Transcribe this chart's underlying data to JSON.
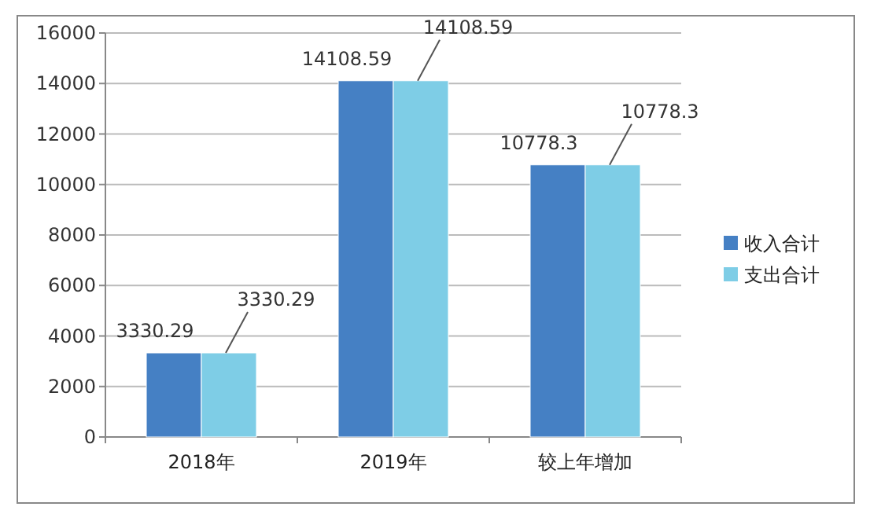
{
  "chart_data": {
    "type": "bar",
    "categories": [
      "2018年",
      "2019年",
      "较上年增加"
    ],
    "series": [
      {
        "name": "收入合计",
        "color": "#4580c4",
        "values": [
          3330.29,
          14108.59,
          10778.3
        ]
      },
      {
        "name": "支出合计",
        "color": "#7ecde6",
        "values": [
          3330.29,
          14108.59,
          10778.3
        ]
      }
    ],
    "ylim": [
      0,
      16000
    ],
    "yticks": [
      0,
      2000,
      4000,
      6000,
      8000,
      10000,
      12000,
      14000,
      16000
    ],
    "grid": "y",
    "legend": "right",
    "data_labels": true
  }
}
